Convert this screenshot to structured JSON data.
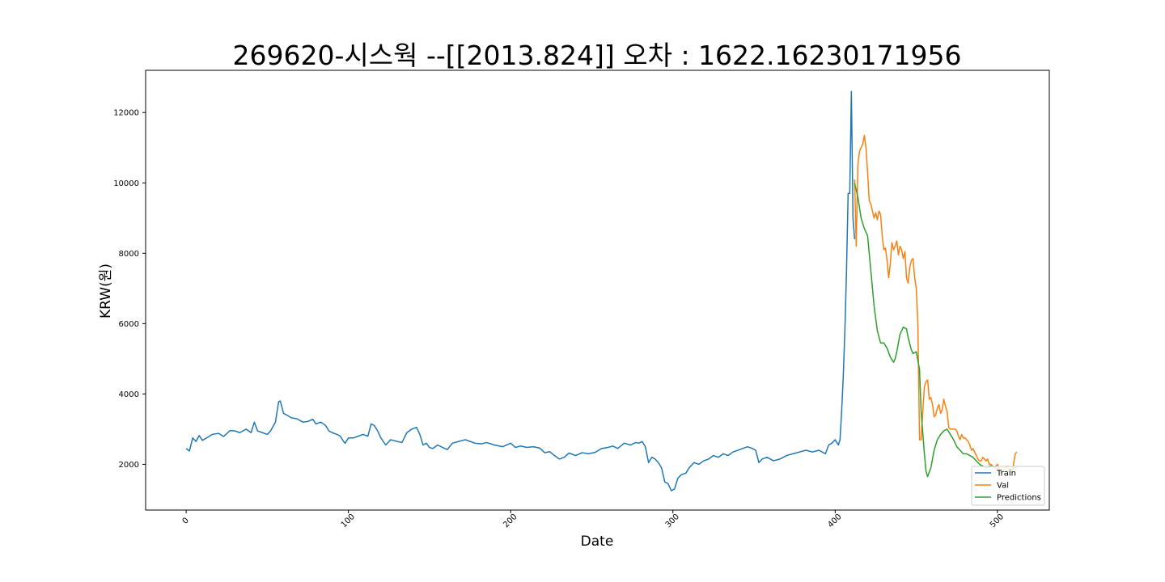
{
  "chart_data": {
    "type": "line",
    "title": "269620-시스웍 --[[2013.824]] 오차 : 1622.16230171956",
    "xlabel": "Date",
    "ylabel": "KRW(원)",
    "xlim": [
      -25,
      532
    ],
    "ylim": [
      700,
      13200
    ],
    "x_ticks": [
      0,
      100,
      200,
      300,
      400,
      500
    ],
    "y_ticks": [
      2000,
      4000,
      6000,
      8000,
      10000,
      12000
    ],
    "grid": false,
    "legend_position": "lower-right",
    "series": [
      {
        "name": "Train",
        "color": "#1f77b4",
        "points": [
          [
            0,
            2450
          ],
          [
            2,
            2380
          ],
          [
            4,
            2750
          ],
          [
            6,
            2650
          ],
          [
            8,
            2820
          ],
          [
            10,
            2680
          ],
          [
            13,
            2760
          ],
          [
            16,
            2850
          ],
          [
            20,
            2880
          ],
          [
            23,
            2790
          ],
          [
            27,
            2960
          ],
          [
            30,
            2950
          ],
          [
            33,
            2900
          ],
          [
            37,
            3000
          ],
          [
            40,
            2900
          ],
          [
            42,
            3200
          ],
          [
            44,
            2950
          ],
          [
            47,
            2900
          ],
          [
            50,
            2850
          ],
          [
            52,
            2950
          ],
          [
            55,
            3200
          ],
          [
            57,
            3780
          ],
          [
            58,
            3800
          ],
          [
            60,
            3450
          ],
          [
            62,
            3400
          ],
          [
            65,
            3320
          ],
          [
            68,
            3300
          ],
          [
            72,
            3200
          ],
          [
            75,
            3220
          ],
          [
            78,
            3280
          ],
          [
            80,
            3150
          ],
          [
            83,
            3200
          ],
          [
            86,
            3100
          ],
          [
            88,
            2950
          ],
          [
            90,
            2900
          ],
          [
            93,
            2850
          ],
          [
            95,
            2800
          ],
          [
            97,
            2650
          ],
          [
            98,
            2600
          ],
          [
            100,
            2750
          ],
          [
            103,
            2750
          ],
          [
            106,
            2800
          ],
          [
            109,
            2850
          ],
          [
            112,
            2800
          ],
          [
            114,
            3150
          ],
          [
            116,
            3100
          ],
          [
            118,
            2950
          ],
          [
            120,
            2750
          ],
          [
            123,
            2550
          ],
          [
            126,
            2700
          ],
          [
            130,
            2650
          ],
          [
            133,
            2620
          ],
          [
            136,
            2900
          ],
          [
            139,
            3000
          ],
          [
            142,
            3050
          ],
          [
            144,
            2850
          ],
          [
            146,
            2550
          ],
          [
            148,
            2600
          ],
          [
            150,
            2480
          ],
          [
            152,
            2450
          ],
          [
            155,
            2550
          ],
          [
            158,
            2480
          ],
          [
            161,
            2420
          ],
          [
            164,
            2600
          ],
          [
            168,
            2650
          ],
          [
            172,
            2700
          ],
          [
            175,
            2650
          ],
          [
            178,
            2600
          ],
          [
            182,
            2580
          ],
          [
            185,
            2620
          ],
          [
            190,
            2550
          ],
          [
            195,
            2500
          ],
          [
            200,
            2600
          ],
          [
            203,
            2480
          ],
          [
            206,
            2520
          ],
          [
            210,
            2480
          ],
          [
            214,
            2500
          ],
          [
            218,
            2460
          ],
          [
            221,
            2330
          ],
          [
            224,
            2360
          ],
          [
            227,
            2250
          ],
          [
            230,
            2150
          ],
          [
            233,
            2200
          ],
          [
            236,
            2320
          ],
          [
            240,
            2250
          ],
          [
            244,
            2330
          ],
          [
            248,
            2300
          ],
          [
            252,
            2340
          ],
          [
            256,
            2450
          ],
          [
            260,
            2480
          ],
          [
            263,
            2520
          ],
          [
            266,
            2450
          ],
          [
            270,
            2600
          ],
          [
            274,
            2550
          ],
          [
            277,
            2620
          ],
          [
            279,
            2600
          ],
          [
            281,
            2650
          ],
          [
            283,
            2500
          ],
          [
            285,
            2050
          ],
          [
            287,
            2200
          ],
          [
            289,
            2150
          ],
          [
            291,
            2050
          ],
          [
            293,
            1900
          ],
          [
            295,
            1500
          ],
          [
            297,
            1450
          ],
          [
            299,
            1250
          ],
          [
            301,
            1300
          ],
          [
            303,
            1600
          ],
          [
            305,
            1700
          ],
          [
            308,
            1750
          ],
          [
            310,
            1900
          ],
          [
            313,
            2050
          ],
          [
            316,
            2000
          ],
          [
            319,
            2100
          ],
          [
            322,
            2150
          ],
          [
            325,
            2250
          ],
          [
            328,
            2200
          ],
          [
            331,
            2300
          ],
          [
            334,
            2250
          ],
          [
            337,
            2350
          ],
          [
            340,
            2400
          ],
          [
            343,
            2450
          ],
          [
            346,
            2500
          ],
          [
            349,
            2450
          ],
          [
            351,
            2400
          ],
          [
            353,
            2050
          ],
          [
            355,
            2150
          ],
          [
            358,
            2200
          ],
          [
            362,
            2100
          ],
          [
            366,
            2150
          ],
          [
            370,
            2250
          ],
          [
            374,
            2300
          ],
          [
            378,
            2350
          ],
          [
            382,
            2400
          ],
          [
            386,
            2350
          ],
          [
            390,
            2400
          ],
          [
            394,
            2300
          ],
          [
            396,
            2550
          ],
          [
            398,
            2600
          ],
          [
            400,
            2700
          ],
          [
            402,
            2550
          ],
          [
            403,
            2700
          ],
          [
            404,
            3500
          ],
          [
            405,
            4500
          ],
          [
            406,
            5800
          ],
          [
            407,
            7500
          ],
          [
            408,
            9700
          ],
          [
            409,
            9700
          ],
          [
            410,
            12600
          ],
          [
            411,
            9000
          ],
          [
            412,
            8400
          ]
        ]
      },
      {
        "name": "Val",
        "color": "#ff7f0e",
        "points": [
          [
            412,
            10100
          ],
          [
            413,
            8200
          ],
          [
            414,
            10500
          ],
          [
            415,
            10900
          ],
          [
            416,
            11000
          ],
          [
            417,
            11100
          ],
          [
            418,
            11350
          ],
          [
            419,
            11000
          ],
          [
            420,
            10300
          ],
          [
            421,
            9500
          ],
          [
            422,
            9400
          ],
          [
            423,
            9200
          ],
          [
            424,
            9000
          ],
          [
            425,
            9150
          ],
          [
            426,
            8950
          ],
          [
            427,
            9200
          ],
          [
            428,
            9100
          ],
          [
            429,
            8500
          ],
          [
            430,
            8100
          ],
          [
            431,
            8150
          ],
          [
            432,
            7800
          ],
          [
            433,
            7300
          ],
          [
            434,
            7700
          ],
          [
            435,
            8300
          ],
          [
            436,
            8100
          ],
          [
            437,
            8200
          ],
          [
            438,
            8350
          ],
          [
            439,
            7950
          ],
          [
            440,
            8200
          ],
          [
            441,
            8100
          ],
          [
            442,
            7850
          ],
          [
            443,
            8050
          ],
          [
            444,
            7300
          ],
          [
            445,
            7150
          ],
          [
            446,
            7600
          ],
          [
            447,
            7800
          ],
          [
            448,
            7850
          ],
          [
            449,
            7300
          ],
          [
            450,
            7000
          ],
          [
            451,
            6000
          ],
          [
            452,
            2700
          ],
          [
            453,
            2700
          ],
          [
            454,
            3500
          ],
          [
            455,
            4200
          ],
          [
            456,
            4350
          ],
          [
            457,
            4400
          ],
          [
            458,
            3850
          ],
          [
            459,
            3900
          ],
          [
            460,
            3700
          ],
          [
            461,
            3350
          ],
          [
            462,
            3400
          ],
          [
            463,
            3600
          ],
          [
            464,
            3700
          ],
          [
            465,
            3450
          ],
          [
            466,
            3550
          ],
          [
            467,
            3850
          ],
          [
            468,
            3650
          ],
          [
            469,
            3500
          ],
          [
            470,
            3050
          ],
          [
            471,
            3000
          ],
          [
            472,
            3000
          ],
          [
            473,
            3000
          ],
          [
            474,
            3000
          ],
          [
            475,
            2950
          ],
          [
            476,
            2800
          ],
          [
            477,
            2700
          ],
          [
            478,
            2850
          ],
          [
            479,
            2750
          ],
          [
            480,
            2750
          ],
          [
            481,
            2700
          ],
          [
            482,
            2650
          ],
          [
            483,
            2550
          ],
          [
            484,
            2400
          ],
          [
            485,
            2450
          ],
          [
            486,
            2350
          ],
          [
            487,
            2250
          ],
          [
            488,
            2150
          ],
          [
            489,
            2100
          ],
          [
            490,
            2100
          ],
          [
            491,
            2200
          ],
          [
            492,
            2150
          ],
          [
            493,
            2100
          ],
          [
            494,
            2150
          ],
          [
            495,
            2000
          ],
          [
            496,
            2000
          ],
          [
            497,
            1950
          ],
          [
            498,
            1900
          ],
          [
            499,
            1950
          ],
          [
            500,
            2000
          ],
          [
            501,
            1900
          ],
          [
            502,
            1850
          ],
          [
            503,
            1800
          ],
          [
            504,
            1850
          ],
          [
            505,
            1900
          ],
          [
            506,
            1950
          ],
          [
            507,
            1900
          ],
          [
            508,
            1800
          ],
          [
            509,
            1800
          ],
          [
            510,
            2000
          ],
          [
            511,
            2300
          ],
          [
            512,
            2350
          ]
        ]
      },
      {
        "name": "Predictions",
        "color": "#2ca02c",
        "points": [
          [
            412,
            10000
          ],
          [
            414,
            9600
          ],
          [
            416,
            9000
          ],
          [
            418,
            8700
          ],
          [
            420,
            8500
          ],
          [
            422,
            7500
          ],
          [
            424,
            6500
          ],
          [
            426,
            5800
          ],
          [
            428,
            5450
          ],
          [
            430,
            5450
          ],
          [
            432,
            5300
          ],
          [
            434,
            5050
          ],
          [
            436,
            4900
          ],
          [
            437,
            5000
          ],
          [
            438,
            5200
          ],
          [
            440,
            5700
          ],
          [
            442,
            5900
          ],
          [
            444,
            5850
          ],
          [
            445,
            5600
          ],
          [
            447,
            5250
          ],
          [
            448,
            5150
          ],
          [
            450,
            5200
          ],
          [
            452,
            4700
          ],
          [
            453,
            3500
          ],
          [
            454,
            2900
          ],
          [
            455,
            2300
          ],
          [
            456,
            1800
          ],
          [
            457,
            1650
          ],
          [
            459,
            1900
          ],
          [
            461,
            2400
          ],
          [
            463,
            2700
          ],
          [
            465,
            2850
          ],
          [
            467,
            2950
          ],
          [
            469,
            3000
          ],
          [
            471,
            2850
          ],
          [
            473,
            2700
          ],
          [
            475,
            2500
          ],
          [
            477,
            2400
          ],
          [
            479,
            2300
          ],
          [
            481,
            2300
          ],
          [
            483,
            2250
          ],
          [
            485,
            2200
          ],
          [
            487,
            2100
          ],
          [
            489,
            2000
          ],
          [
            491,
            1950
          ],
          [
            493,
            1900
          ],
          [
            495,
            1950
          ],
          [
            497,
            1950
          ],
          [
            499,
            1900
          ],
          [
            501,
            1850
          ],
          [
            503,
            1800
          ],
          [
            505,
            1800
          ],
          [
            507,
            1800
          ],
          [
            509,
            1850
          ],
          [
            511,
            1900
          ],
          [
            512,
            1900
          ]
        ]
      }
    ]
  }
}
